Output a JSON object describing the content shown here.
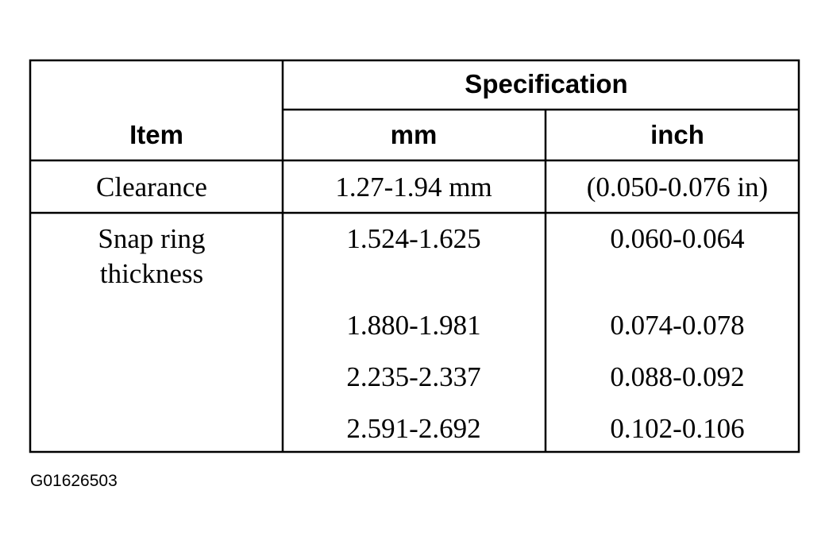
{
  "table": {
    "header": {
      "item": "Item",
      "specification": "Specification",
      "units": [
        "mm",
        "inch"
      ]
    },
    "rows": [
      {
        "item": "Clearance",
        "values": [
          [
            "1.27-1.94 mm",
            "(0.050-0.076 in)"
          ]
        ]
      },
      {
        "item": "Snap ring thickness",
        "values": [
          [
            "1.524-1.625",
            "0.060-0.064"
          ],
          [
            "1.880-1.981",
            "0.074-0.078"
          ],
          [
            "2.235-2.337",
            "0.088-0.092"
          ],
          [
            "2.591-2.692",
            "0.102-0.106"
          ]
        ]
      }
    ]
  },
  "figure_id": "G01626503"
}
